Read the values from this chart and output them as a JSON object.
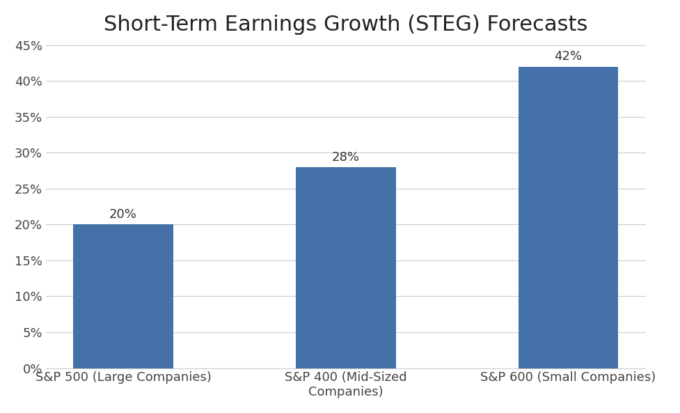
{
  "title": "Short-Term Earnings Growth (STEG) Forecasts",
  "categories": [
    "S&P 500 (Large Companies)",
    "S&P 400 (Mid-Sized\nCompanies)",
    "S&P 600 (Small Companies)"
  ],
  "values": [
    20,
    28,
    42
  ],
  "bar_color": "#4472a8",
  "value_labels": [
    "20%",
    "28%",
    "42%"
  ],
  "ylim": [
    0,
    45
  ],
  "yticks": [
    0,
    5,
    10,
    15,
    20,
    25,
    30,
    35,
    40,
    45
  ],
  "ytick_labels": [
    "0%",
    "5%",
    "10%",
    "15%",
    "20%",
    "25%",
    "30%",
    "35%",
    "40%",
    "45%"
  ],
  "title_fontsize": 22,
  "label_fontsize": 13,
  "tick_fontsize": 13,
  "background_color": "#ffffff",
  "grid_color": "#cccccc",
  "bar_width": 0.45
}
